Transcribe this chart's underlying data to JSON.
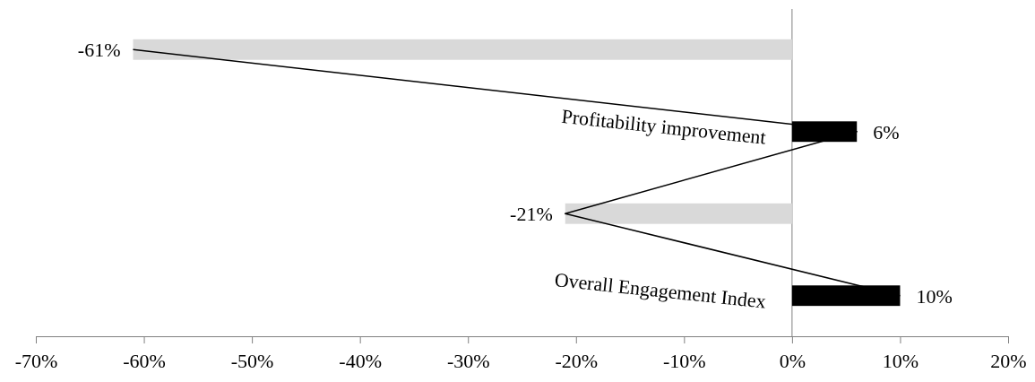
{
  "chart_data": {
    "type": "bar",
    "orientation": "horizontal",
    "categories": [
      null,
      "Profitability improvement",
      null,
      "Overall Engagement Index"
    ],
    "series": [
      {
        "type": "bar",
        "colors": [
          "#d9d9d9",
          "#000000",
          "#d9d9d9",
          "#000000"
        ],
        "values": [
          -61,
          6,
          -21,
          10
        ],
        "value_labels": [
          "-61%",
          "6%",
          "-21%",
          "10%"
        ]
      },
      {
        "type": "line",
        "color": "#000000",
        "values": [
          -61,
          6,
          -21,
          10
        ]
      }
    ],
    "xlim": [
      -70,
      20
    ],
    "xticks": [
      {
        "value": -70,
        "label": "-70%"
      },
      {
        "value": -60,
        "label": "-60%"
      },
      {
        "value": -50,
        "label": "-50%"
      },
      {
        "value": -40,
        "label": "-40%"
      },
      {
        "value": -30,
        "label": "-30%"
      },
      {
        "value": -20,
        "label": "-20%"
      },
      {
        "value": -10,
        "label": "-10%"
      },
      {
        "value": 0,
        "label": "0%"
      },
      {
        "value": 10,
        "label": "10%"
      },
      {
        "value": 20,
        "label": "20%"
      }
    ],
    "grid": false,
    "legend": false
  }
}
